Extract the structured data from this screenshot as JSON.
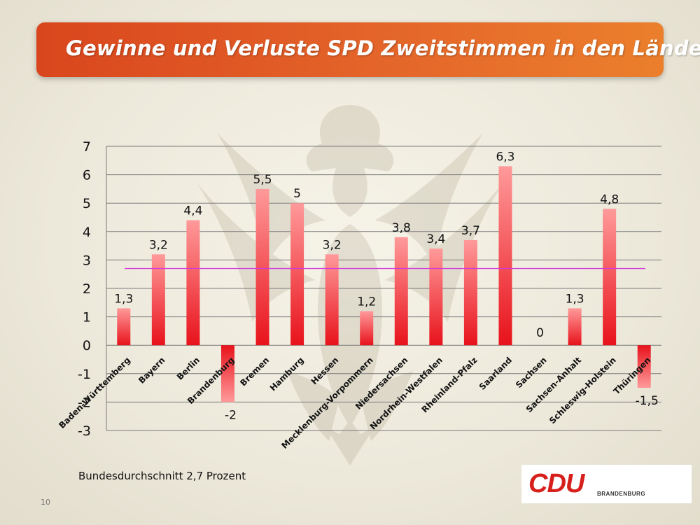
{
  "title": "Gewinne und Verluste SPD Zweitstimmen in den Ländern",
  "footnote": "Bundesdurchschnitt 2,7 Prozent",
  "page_number": "10",
  "logo": {
    "main": "CDU",
    "sub": "BRANDENBURG"
  },
  "colors": {
    "bar_top": "#ff9a9a",
    "bar_bottom": "#e8121b",
    "average_line": "#d23ad8",
    "title_bar": "#e4652a"
  },
  "chart_data": {
    "type": "bar",
    "categories": [
      "Baden-Württemberg",
      "Bayern",
      "Berlin",
      "Brandenburg",
      "Bremen",
      "Hamburg",
      "Hessen",
      "Mecklenburg-Vorpommern",
      "Niedersachsen",
      "Nordrhein-Westfalen",
      "Rheinland-Pfalz",
      "Saarland",
      "Sachsen",
      "Sachsen-Anhalt",
      "Schleswig-Holstein",
      "Thüringen"
    ],
    "values": [
      1.3,
      3.2,
      4.4,
      -2,
      5.5,
      5,
      3.2,
      1.2,
      3.8,
      3.4,
      3.7,
      6.3,
      0,
      1.3,
      4.8,
      -1.5
    ],
    "value_labels": [
      "1,3",
      "3,2",
      "4,4",
      "-2",
      "5,5",
      "5",
      "3,2",
      "1,2",
      "3,8",
      "3,4",
      "3,7",
      "6,3",
      "0",
      "1,3",
      "4,8",
      "-1,5"
    ],
    "yticks": [
      "7",
      "6",
      "5",
      "4",
      "3",
      "2",
      "1",
      "0",
      "-1",
      "-2",
      "-3"
    ],
    "ylim": [
      -3,
      7
    ],
    "average": 2.7,
    "grid": true
  }
}
